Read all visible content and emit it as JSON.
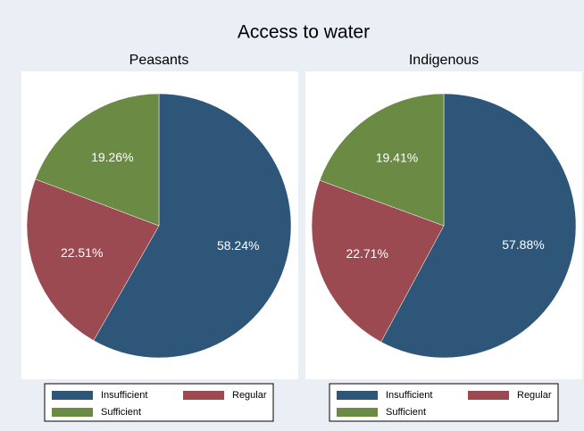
{
  "title": "Access to water",
  "chart_data": [
    {
      "type": "pie",
      "title": "Peasants",
      "categories": [
        "Insufficient",
        "Regular",
        "Sufficient"
      ],
      "values": [
        58.24,
        22.51,
        19.26
      ],
      "value_labels": [
        "58.24%",
        "22.51%",
        "19.26%"
      ],
      "colors": [
        "#2e5679",
        "#9b4a52",
        "#6b8a44"
      ]
    },
    {
      "type": "pie",
      "title": "Indigenous",
      "categories": [
        "Insufficient",
        "Regular",
        "Sufficient"
      ],
      "values": [
        57.88,
        22.71,
        19.41
      ],
      "value_labels": [
        "57.88%",
        "22.71%",
        "19.41%"
      ],
      "colors": [
        "#2e5679",
        "#9b4a52",
        "#6b8a44"
      ]
    }
  ]
}
